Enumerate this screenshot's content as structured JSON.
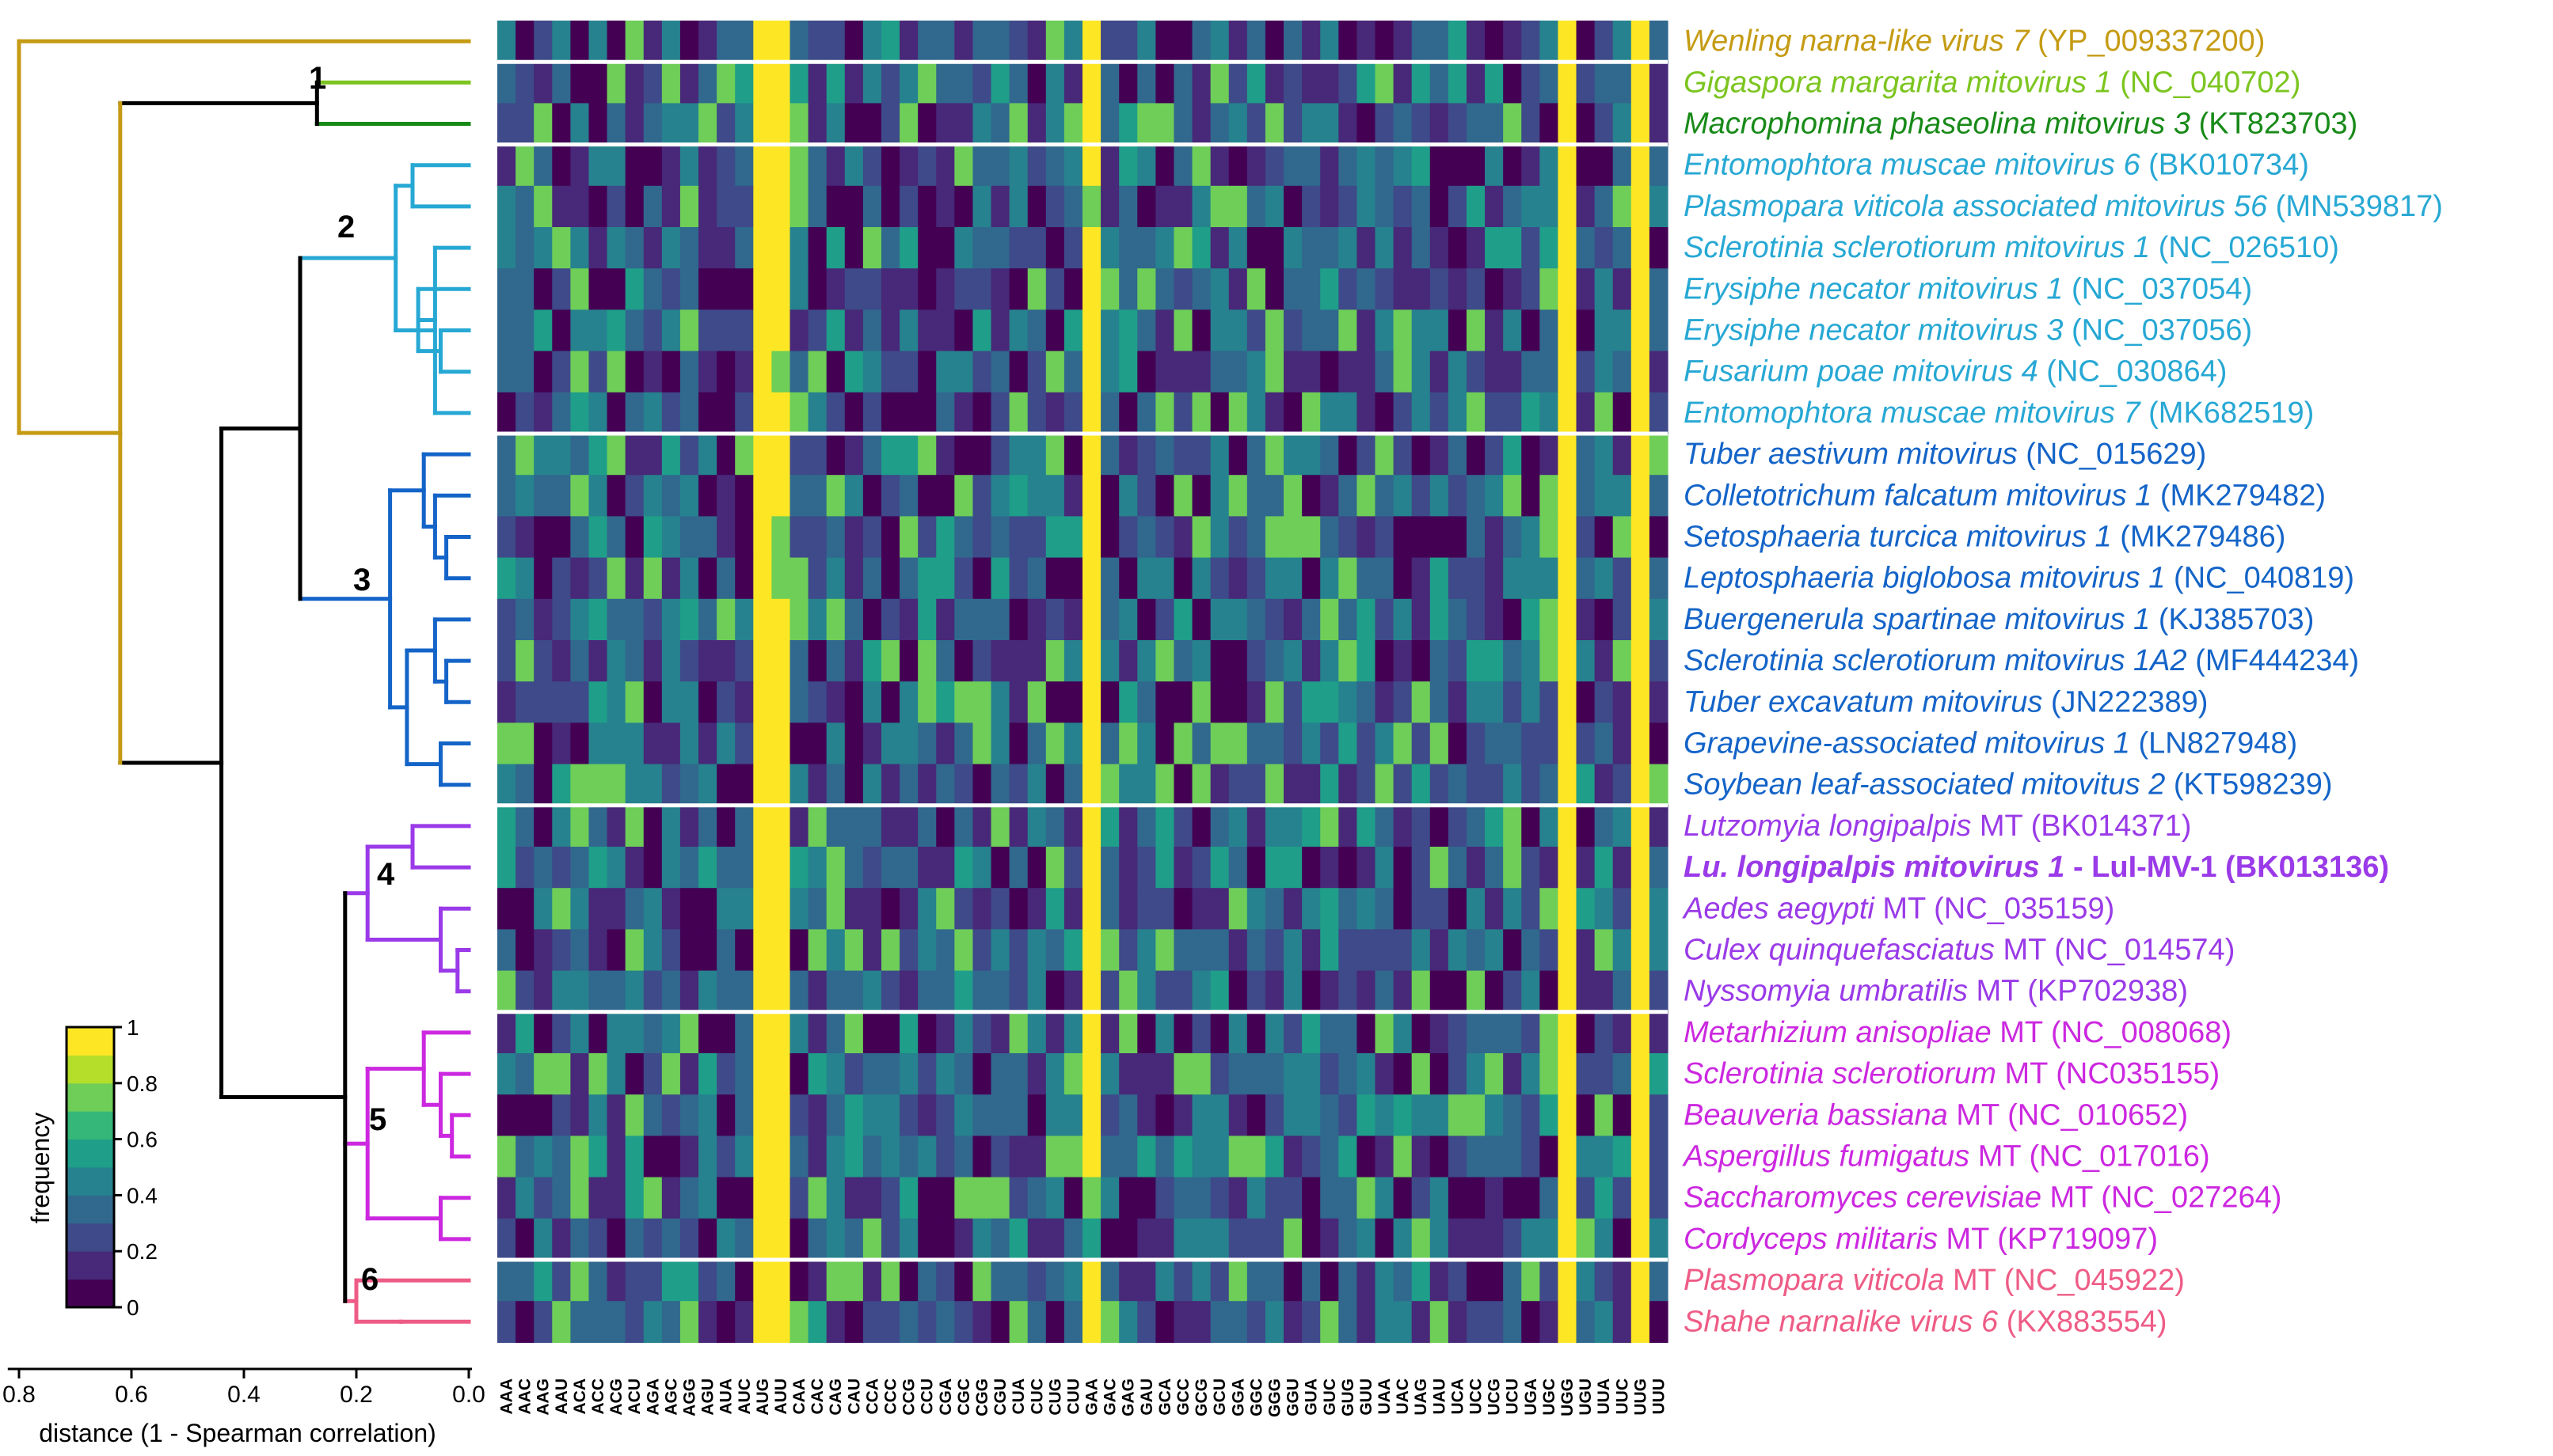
{
  "chart_data": {
    "type": "heatmap",
    "title": "",
    "colorbar": {
      "label": "frequency",
      "ticks": [
        "0",
        "0.2",
        "0.4",
        "0.6",
        "0.8",
        "1"
      ],
      "range": [
        0,
        1
      ]
    },
    "dendrogram_axis": {
      "label": "distance (1 - Spearman correlation)",
      "ticks": [
        "0.8",
        "0.6",
        "0.4",
        "0.2",
        "0.0"
      ],
      "range": [
        0.8,
        0.0
      ]
    },
    "clades": [
      "1",
      "2",
      "3",
      "4",
      "5",
      "6"
    ],
    "codons": [
      "AAA",
      "AAC",
      "AAG",
      "AAU",
      "ACA",
      "ACC",
      "ACG",
      "ACU",
      "AGA",
      "AGC",
      "AGG",
      "AGU",
      "AUA",
      "AUC",
      "AUG",
      "AUU",
      "CAA",
      "CAC",
      "CAG",
      "CAU",
      "CCA",
      "CCC",
      "CCG",
      "CCU",
      "CGA",
      "CGC",
      "CGG",
      "CGU",
      "CUA",
      "CUC",
      "CUG",
      "CUU",
      "GAA",
      "GAC",
      "GAG",
      "GAU",
      "GCA",
      "GCC",
      "GCG",
      "GCU",
      "GGA",
      "GGC",
      "GGG",
      "GGU",
      "GUA",
      "GUC",
      "GUG",
      "GUU",
      "UAA",
      "UAC",
      "UAG",
      "UAU",
      "UCA",
      "UCC",
      "UCG",
      "UCU",
      "UGA",
      "UGC",
      "UGG",
      "UGU",
      "UUA",
      "UUC",
      "UUG",
      "UUU"
    ],
    "rows": [
      {
        "name": "Wenling narna-like virus 7",
        "accession": "(YP_009337200)",
        "clade": 0
      },
      {
        "name": "Gigaspora margarita mitovirus 1",
        "accession": "(NC_040702)",
        "clade": 1
      },
      {
        "name": "Macrophomina phaseolina mitovirus 3",
        "accession": "(KT823703)",
        "clade": 2
      },
      {
        "name": "Entomophtora muscae mitovirus 6",
        "accession": "(BK010734)",
        "clade": 3
      },
      {
        "name": "Plasmopara viticola associated mitovirus 56",
        "accession": "(MN539817)",
        "clade": 3
      },
      {
        "name": "Sclerotinia sclerotiorum mitovirus 1",
        "accession": "(NC_026510)",
        "clade": 3
      },
      {
        "name": "Erysiphe necator mitovirus 1",
        "accession": "(NC_037054)",
        "clade": 3
      },
      {
        "name": "Erysiphe necator mitovirus 3",
        "accession": "(NC_037056)",
        "clade": 3
      },
      {
        "name": "Fusarium poae mitovirus 4",
        "accession": "(NC_030864)",
        "clade": 3
      },
      {
        "name": "Entomophtora muscae mitovirus 7",
        "accession": "(MK682519)",
        "clade": 3
      },
      {
        "name": "Tuber aestivum mitovirus",
        "accession": "(NC_015629)",
        "clade": 4
      },
      {
        "name": "Colletotrichum falcatum mitovirus 1",
        "accession": "(MK279482)",
        "clade": 4
      },
      {
        "name": "Setosphaeria turcica mitovirus 1",
        "accession": "(MK279486)",
        "clade": 4
      },
      {
        "name": "Leptosphaeria biglobosa mitovirus 1",
        "accession": "(NC_040819)",
        "clade": 4
      },
      {
        "name": "Buergenerula spartinae mitovirus 1",
        "accession": "(KJ385703)",
        "clade": 4
      },
      {
        "name": "Sclerotinia sclerotiorum mitovirus 1A2",
        "accession": "(MF444234)",
        "clade": 4
      },
      {
        "name": "Tuber excavatum mitovirus",
        "accession": "(JN222389)",
        "clade": 4
      },
      {
        "name": "Grapevine-associated mitovirus 1",
        "accession": "(LN827948)",
        "clade": 4
      },
      {
        "name": "Soybean leaf-associated mitovitus 2",
        "accession": "(KT598239)",
        "clade": 4
      },
      {
        "name": "Lutzomyia longipalpis",
        "suffix": " MT ",
        "accession": "(BK014371)",
        "clade": 5
      },
      {
        "name": "Lu. longipalpis mitovirus 1",
        "suffix": " - LuI-MV-1 ",
        "accession": "(BK013136)",
        "clade": 5,
        "bold": true
      },
      {
        "name": "Aedes aegypti",
        "suffix": " MT ",
        "accession": "(NC_035159)",
        "clade": 5
      },
      {
        "name": "Culex quinquefasciatus",
        "suffix": " MT ",
        "accession": "(NC_014574)",
        "clade": 5
      },
      {
        "name": "Nyssomyia umbratilis",
        "suffix": " MT ",
        "accession": "(KP702938)",
        "clade": 5
      },
      {
        "name": "Metarhizium anisopliae",
        "suffix": " MT ",
        "accession": "(NC_008068)",
        "clade": 6
      },
      {
        "name": "Sclerotinia sclerotiorum",
        "suffix": " MT ",
        "accession": "(NC035155)",
        "clade": 6
      },
      {
        "name": "Beauveria bassiana",
        "suffix": " MT ",
        "accession": "(NC_010652)",
        "clade": 6
      },
      {
        "name": "Aspergillus fumigatus",
        "suffix": " MT ",
        "accession": "(NC_017016)",
        "clade": 6
      },
      {
        "name": "Saccharomyces cerevisiae",
        "suffix": " MT ",
        "accession": "(NC_027264)",
        "clade": 6
      },
      {
        "name": "Cordyceps militaris",
        "suffix": " MT ",
        "accession": "(KP719097)",
        "clade": 6
      },
      {
        "name": "Plasmopara viticola",
        "suffix": " MT ",
        "accession": "(NC_045922)",
        "clade": 7
      },
      {
        "name": "Shahe narnalike virus 6",
        "accession": "(KX883554)",
        "clade": 7
      }
    ],
    "row_group_separators_after": [
      0,
      2,
      9,
      18,
      23,
      29
    ],
    "clade_colors": [
      "#c59b14",
      "#7cc520",
      "#188a18",
      "#27a8d4",
      "#1464c8",
      "#9a3ae8",
      "#cc28e0",
      "#ee5c86"
    ],
    "colormap": [
      "#440154",
      "#482878",
      "#3e4a89",
      "#31688e",
      "#26828e",
      "#1f9e89",
      "#35b779",
      "#6ece58",
      "#b5de2b",
      "#fde725"
    ]
  }
}
